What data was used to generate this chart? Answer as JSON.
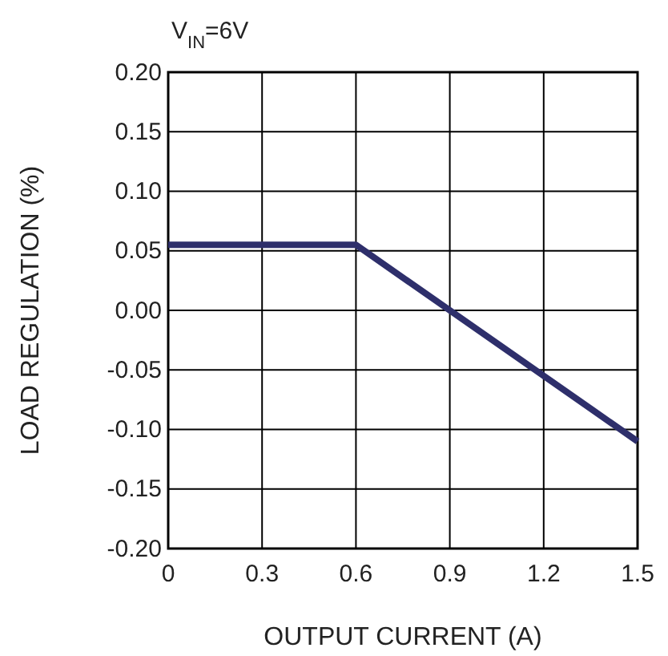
{
  "chart_data": {
    "type": "line",
    "xlabel": "OUTPUT CURRENT (A)",
    "ylabel": "LOAD REGULATION (%)",
    "annotations": [
      "V$_{IN}$=6V"
    ],
    "x": [
      0,
      0.6,
      1.5
    ],
    "series": [
      {
        "color": "#2e2f6b",
        "values": [
          0.055,
          0.055,
          -0.11
        ]
      }
    ],
    "xlim": [
      0,
      1.5
    ],
    "xticks": [
      0,
      0.3,
      0.6,
      0.9,
      1.2,
      1.5
    ],
    "ylim": [
      -0.2,
      0.2
    ],
    "yticks": [
      {
        "value": -0.2,
        "label": "-0.20"
      },
      {
        "value": -0.15,
        "label": "-0.15"
      },
      {
        "value": -0.1,
        "label": "-0.10"
      },
      {
        "value": -0.05,
        "label": "-0.05"
      },
      {
        "value": 0,
        "label": "0.00"
      },
      {
        "value": 0.05,
        "label": "0.05"
      },
      {
        "value": 0.1,
        "label": "0.10"
      },
      {
        "value": 0.15,
        "label": "0.15"
      },
      {
        "value": 0.2,
        "label": "0.20"
      }
    ],
    "grid": true,
    "marker": "none",
    "line_style": "solid"
  }
}
